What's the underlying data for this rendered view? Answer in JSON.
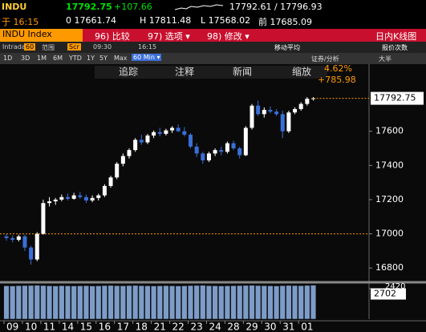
{
  "header": {
    "ticker": "INDU",
    "last": "17792.75",
    "change": "+107.66",
    "bid_ask": "17792.61 / 17796.93",
    "time": "于 16:15",
    "open": "0 17661.74",
    "high": "H 17811.48",
    "low": "L 17568.02",
    "prev_close": "前 17685.09"
  },
  "toolbar": {
    "security": "INDU Index",
    "compare": "96) 比较",
    "options": "97) 选项 ▾",
    "edit": "98) 修改 ▾",
    "chart_type": "日内K线图",
    "mode": "Intraday",
    "interval": "60",
    "range_label": "范围",
    "scr": "Scr",
    "start": "09:30",
    "end": "16:15",
    "moving_average": "移动平均",
    "tick_count": "报价次数",
    "periods": [
      "1D",
      "3D",
      "1M",
      "6M",
      "YTD",
      "1Y",
      "5Y",
      "Max"
    ],
    "frequency": "60 Min ▾",
    "analysis": "证券/分析",
    "size": "大半"
  },
  "chart_tools": [
    "追踪",
    "注释",
    "新闻",
    "缩放"
  ],
  "chart_data": {
    "type": "candlestick",
    "categories": [
      "09",
      null,
      null,
      "10",
      null,
      null,
      "11",
      null,
      null,
      "14",
      null,
      null,
      "15",
      null,
      null,
      "16",
      null,
      null,
      "17",
      null,
      null,
      "18",
      null,
      null,
      "21",
      null,
      null,
      "22",
      null,
      null,
      "23",
      null,
      null,
      "24",
      null,
      null,
      "28",
      null,
      null,
      "29",
      null,
      null,
      "30",
      null,
      null,
      "31",
      null,
      null,
      "01",
      null,
      null
    ],
    "open": [
      16985,
      16975,
      16965,
      16985,
      16920,
      16850,
      17000,
      17180,
      17190,
      17200,
      17215,
      17205,
      17225,
      17215,
      17195,
      17210,
      17225,
      17280,
      17330,
      17410,
      17455,
      17490,
      17550,
      17535,
      17575,
      17595,
      17585,
      17605,
      17620,
      17600,
      17580,
      17510,
      17470,
      17430,
      17470,
      17490,
      17480,
      17530,
      17500,
      17460,
      17620,
      17750,
      17700,
      17725,
      17715,
      17700,
      17600,
      17710,
      17730,
      17760,
      17790
    ],
    "high": [
      17000,
      16990,
      16995,
      16995,
      16930,
      17010,
      17200,
      17215,
      17210,
      17230,
      17235,
      17240,
      17245,
      17230,
      17225,
      17235,
      17290,
      17340,
      17420,
      17470,
      17500,
      17560,
      17580,
      17585,
      17605,
      17620,
      17615,
      17630,
      17640,
      17625,
      17590,
      17530,
      17480,
      17480,
      17500,
      17510,
      17540,
      17545,
      17510,
      17630,
      17760,
      17780,
      17740,
      17745,
      17730,
      17720,
      17720,
      17740,
      17770,
      17800,
      17800
    ],
    "low": [
      16960,
      16950,
      16955,
      16900,
      16820,
      16840,
      16995,
      17160,
      17170,
      17190,
      17195,
      17200,
      17205,
      17180,
      17185,
      17195,
      17215,
      17270,
      17320,
      17395,
      17440,
      17480,
      17520,
      17525,
      17560,
      17570,
      17575,
      17590,
      17595,
      17570,
      17500,
      17450,
      17410,
      17420,
      17455,
      17460,
      17470,
      17490,
      17440,
      17455,
      17610,
      17690,
      17680,
      17705,
      17690,
      17560,
      17590,
      17700,
      17720,
      17750,
      17780
    ],
    "close": [
      16975,
      16965,
      16985,
      16920,
      16850,
      17000,
      17180,
      17190,
      17200,
      17215,
      17205,
      17225,
      17215,
      17195,
      17210,
      17225,
      17280,
      17330,
      17410,
      17455,
      17490,
      17550,
      17535,
      17575,
      17595,
      17585,
      17605,
      17620,
      17600,
      17580,
      17510,
      17470,
      17430,
      17470,
      17490,
      17480,
      17530,
      17500,
      17460,
      17620,
      17750,
      17700,
      17725,
      17715,
      17700,
      17600,
      17710,
      17730,
      17760,
      17790,
      17792.75
    ],
    "up_color": "#ffffff",
    "down_color": "#3a6fd8",
    "ylim": [
      16726,
      17880
    ],
    "yticks": [
      16800,
      17000,
      17200,
      17400,
      17600
    ],
    "reference_line": 17000,
    "reference_color": "#ff9900",
    "last_label": 17792.75,
    "pct_change": "4.62%",
    "abs_change": "+785.98",
    "volume": {
      "values": [
        2650,
        2640,
        2660,
        2670,
        2680,
        2690,
        2670,
        2650,
        2640,
        2660,
        2650,
        2640,
        2650,
        2660,
        2640,
        2650,
        2670,
        2680,
        2660,
        2650,
        2670,
        2680,
        2660,
        2650,
        2640,
        2650,
        2660,
        2650,
        2640,
        2650,
        2670,
        2680,
        2690,
        2660,
        2650,
        2640,
        2650,
        2660,
        2670,
        2680,
        2690,
        2670,
        2660,
        2650,
        2640,
        2660,
        2680,
        2670,
        2660,
        2680,
        2702
      ],
      "color": "#7d9cc8",
      "ylim": [
        0,
        2800
      ],
      "yticks": [
        2420
      ],
      "last_label": 2702
    }
  }
}
